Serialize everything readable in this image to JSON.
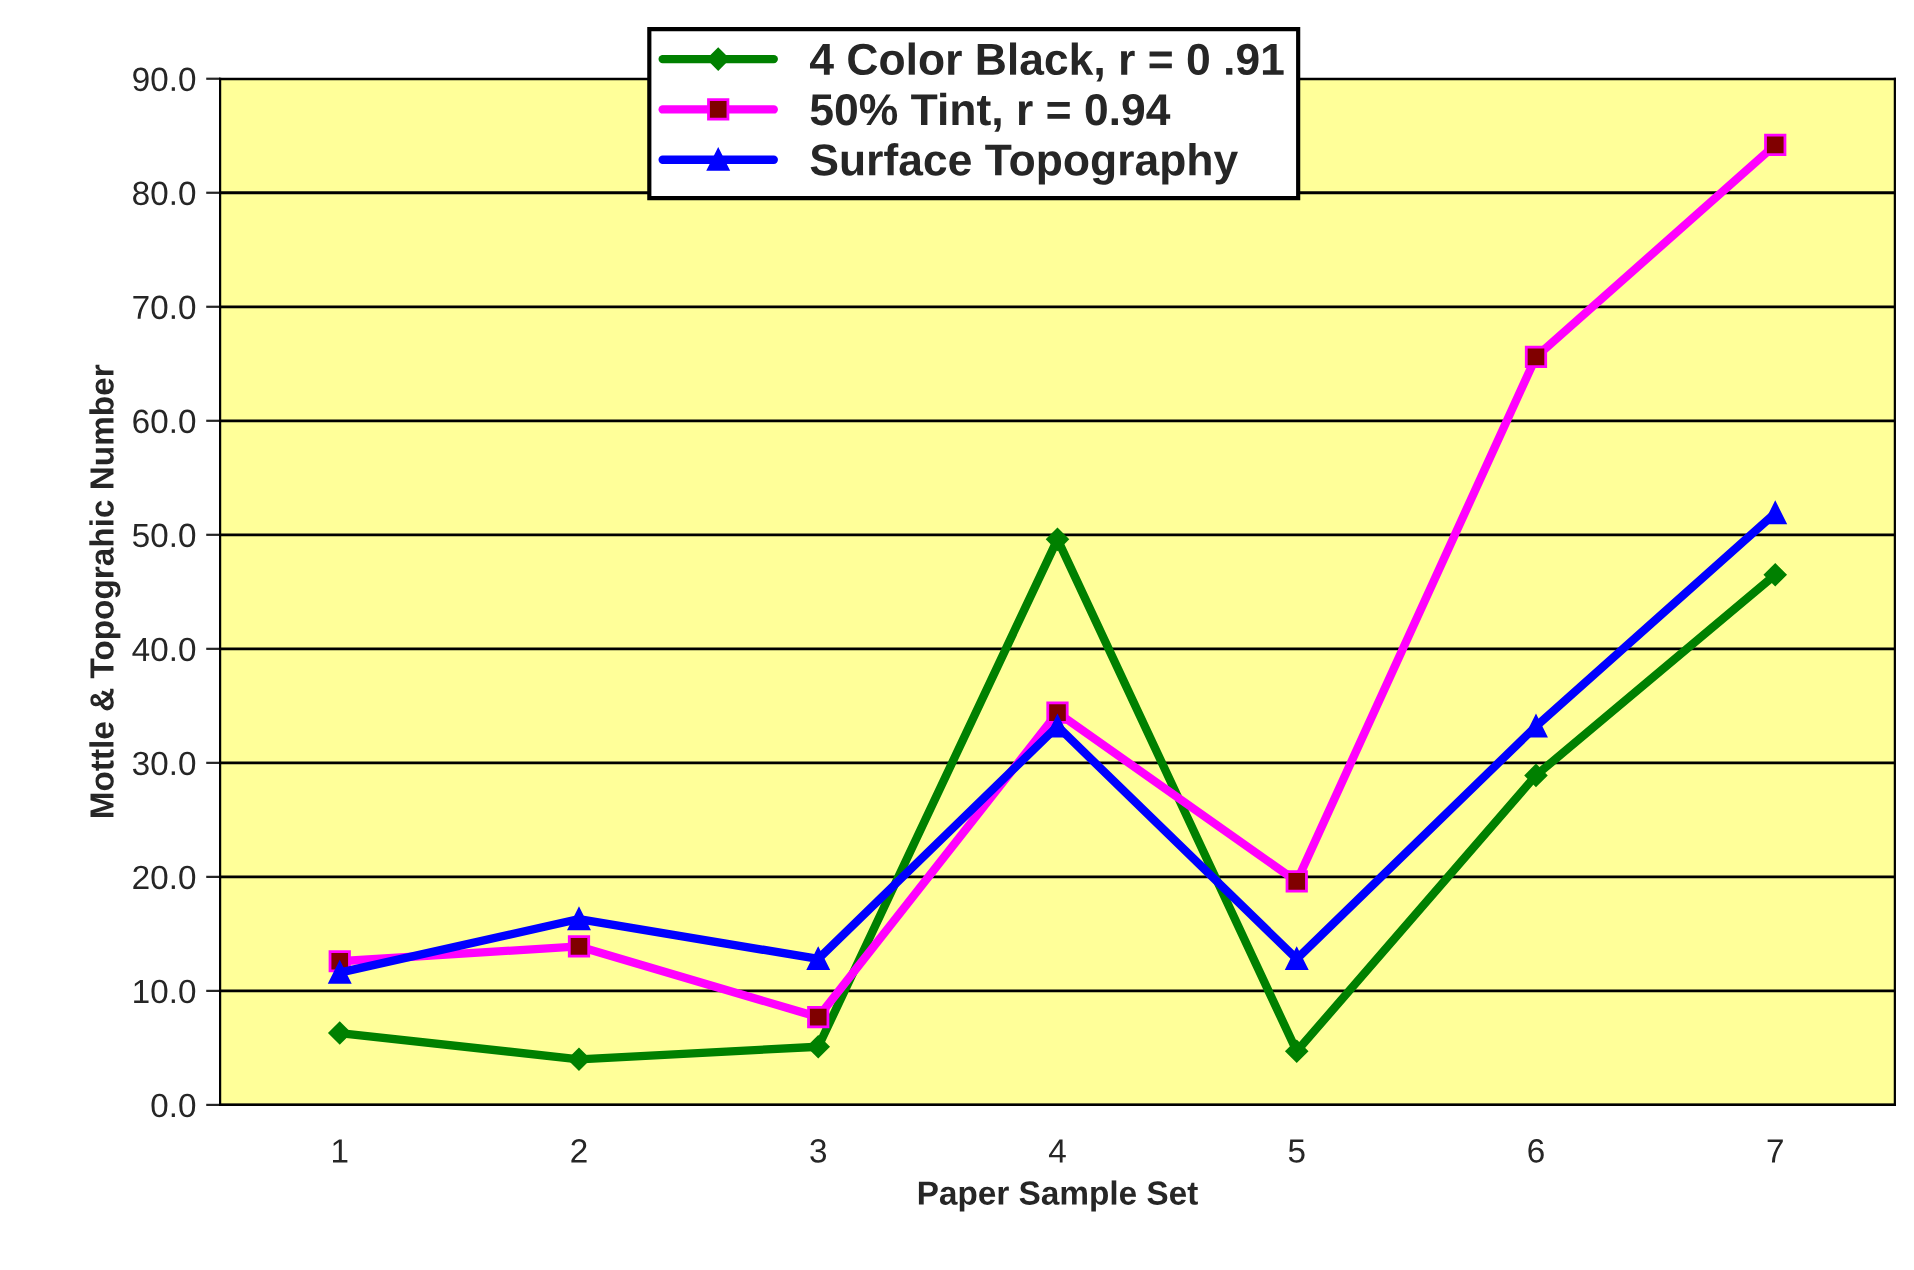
{
  "chart_data": {
    "type": "line",
    "xlabel": "Paper Sample Set",
    "ylabel": "Mottle & Topograhic Number",
    "categories": [
      "1",
      "2",
      "3",
      "4",
      "5",
      "6",
      "7"
    ],
    "series": [
      {
        "name": "4 Color Black, r = 0 .91",
        "color": "#008000",
        "marker": "diamond",
        "values": [
          6.3,
          4.0,
          5.1,
          49.6,
          4.7,
          28.9,
          46.5
        ]
      },
      {
        "name": "50% Tint, r = 0.94",
        "color": "#ff00ff",
        "marker": "square",
        "values": [
          12.6,
          13.9,
          7.7,
          34.4,
          19.6,
          65.6,
          84.2
        ]
      },
      {
        "name": "Surface Topography",
        "color": "#0000ff",
        "marker": "triangle",
        "values": [
          11.6,
          16.3,
          12.8,
          33.2,
          12.8,
          33.2,
          51.9
        ]
      }
    ],
    "ylim": [
      0,
      90
    ],
    "yticks": [
      {
        "value": 0,
        "label": "0.0"
      },
      {
        "value": 10,
        "label": "10.0"
      },
      {
        "value": 20,
        "label": "20.0"
      },
      {
        "value": 30,
        "label": "30.0"
      },
      {
        "value": 40,
        "label": "40.0"
      },
      {
        "value": 50,
        "label": "50.0"
      },
      {
        "value": 60,
        "label": "60.0"
      },
      {
        "value": 70,
        "label": "70.0"
      },
      {
        "value": 80,
        "label": "80.0"
      },
      {
        "value": 90,
        "label": "90.0"
      }
    ],
    "grid": "y",
    "legend": "top",
    "line_style": "solid"
  }
}
